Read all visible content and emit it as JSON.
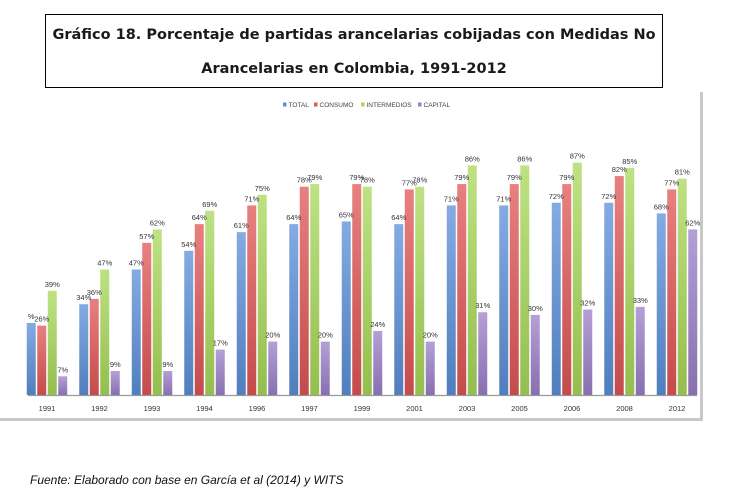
{
  "header": {
    "title_line1": "Gráfico 18. Porcentaje de partidas arancelarias cobijadas con Medidas No",
    "title_line2": "Arancelarias en Colombia, 1991-2012"
  },
  "source": "Fuente: Elaborado con base en García et al (2014) y WITS",
  "chart_data": {
    "type": "bar",
    "title": "Gráfico 18. Porcentaje de partidas arancelarias cobijadas con Medidas No Arancelarias en Colombia, 1991-2012",
    "xlabel": "",
    "ylabel": "",
    "ylim": [
      0,
      100
    ],
    "grid": false,
    "legend_position": "top-center",
    "categories": [
      "1991",
      "1992",
      "1993",
      "1994",
      "1996",
      "1997",
      "1999",
      "2001",
      "2003",
      "2005",
      "2006",
      "2008",
      "2012"
    ],
    "series": [
      {
        "name": "TOTAL",
        "color": "#5b8fd8",
        "values": [
          27,
          34,
          47,
          54,
          61,
          64,
          65,
          64,
          71,
          71,
          72,
          72,
          68
        ],
        "labels": [
          "%",
          "34%",
          "47%",
          "54%",
          "61%",
          "64%",
          "65%",
          "64%",
          "71%",
          "71%",
          "72%",
          "72%",
          "68%"
        ]
      },
      {
        "name": "CONSUMO",
        "color": "#e05555",
        "values": [
          26,
          36,
          57,
          64,
          71,
          78,
          79,
          77,
          79,
          79,
          79,
          82,
          77
        ],
        "labels": [
          "26%",
          "36%",
          "57%",
          "64%",
          "71%",
          "78%",
          "79%",
          "77%",
          "79%",
          "79%",
          "79%",
          "82%",
          "77%"
        ]
      },
      {
        "name": "INTERMEDIOS",
        "color": "#a8d85a",
        "values": [
          39,
          47,
          62,
          69,
          75,
          79,
          78,
          78,
          86,
          86,
          87,
          85,
          81
        ],
        "labels": [
          "39%",
          "47%",
          "62%",
          "69%",
          "75%",
          "79%",
          "78%",
          "78%",
          "86%",
          "86%",
          "87%",
          "85%",
          "81%"
        ]
      },
      {
        "name": "CAPITAL",
        "color": "#9b7fc8",
        "values": [
          7,
          9,
          9,
          17,
          20,
          20,
          24,
          20,
          31,
          30,
          32,
          33,
          62
        ],
        "labels": [
          "7%",
          "9%",
          "9%",
          "17%",
          "20%",
          "20%",
          "24%",
          "20%",
          "31%",
          "30%",
          "32%",
          "33%",
          "62%"
        ]
      }
    ]
  }
}
